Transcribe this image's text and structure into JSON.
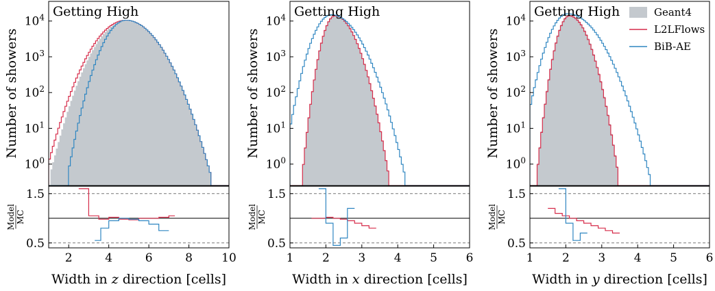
{
  "figure": {
    "colors": {
      "geant": "#c4c9ce",
      "l2l": "#d62c4a",
      "bib": "#2f86c1",
      "refline": "#777777"
    },
    "legend": [
      {
        "name": "Geant4",
        "style": "fill",
        "color": "#c4c9ce"
      },
      {
        "name": "L2LFlows",
        "style": "line",
        "color": "#d62c4a"
      },
      {
        "name": "BiB-AE",
        "style": "line",
        "color": "#2f86c1"
      }
    ]
  },
  "chart_data": [
    {
      "type": "histogram",
      "annotation": "Getting High",
      "xlabel": "Width in z direction [cells]",
      "xlabel_parts": {
        "pre": "Width in ",
        "var": "z",
        "post": " direction [cells]"
      },
      "ylabel": "Number of showers",
      "ratio_label": {
        "num": "Model",
        "den": "MC"
      },
      "x_range": [
        1,
        10
      ],
      "x_ticks": [
        2,
        4,
        6,
        8,
        10
      ],
      "y_scale": "log",
      "y_range_log10": [
        -0.6,
        4.55
      ],
      "y_ticks": [
        "10^0",
        "10^1",
        "10^2",
        "10^3",
        "10^4"
      ],
      "ratio_range": [
        0.4,
        1.65
      ],
      "ratio_ticks": [
        0.5,
        1.5
      ],
      "series": [
        {
          "name": "Geant4",
          "mu": 4.85,
          "sl": 0.85,
          "sr": 0.95,
          "peak": 10000
        },
        {
          "name": "L2LFlows",
          "mu": 4.85,
          "sl": 0.9,
          "sr": 0.95,
          "peak": 10500
        },
        {
          "name": "BiB-AE",
          "mu": 4.85,
          "sl": 0.65,
          "sr": 0.95,
          "peak": 10500
        }
      ],
      "ratio_series": [
        {
          "name": "L2LFlows",
          "x": [
            2.5,
            3.0,
            3.5,
            4.0,
            4.5,
            5.0,
            5.5,
            6.0,
            6.5,
            7.0,
            7.3
          ],
          "y": [
            1.6,
            1.05,
            0.98,
            1.02,
            0.98,
            0.97,
            1.0,
            1.0,
            1.02,
            1.05,
            1.6
          ]
        },
        {
          "name": "BiB-AE",
          "x": [
            3.3,
            3.6,
            4.0,
            4.5,
            5.0,
            5.5,
            6.0,
            6.5,
            7.0
          ],
          "y": [
            0.55,
            0.8,
            0.95,
            1.0,
            0.98,
            0.95,
            0.88,
            0.75,
            0.55
          ]
        }
      ]
    },
    {
      "type": "histogram",
      "annotation": "Getting High",
      "xlabel": "Width in x direction [cells]",
      "xlabel_parts": {
        "pre": "Width in ",
        "var": "x",
        "post": " direction [cells]"
      },
      "ylabel": "Number of showers",
      "ratio_label": {
        "num": "Model",
        "den": "MC"
      },
      "x_range": [
        1,
        6
      ],
      "x_ticks": [
        1,
        2,
        3,
        4,
        5,
        6
      ],
      "y_scale": "log",
      "y_range_log10": [
        -0.6,
        4.55
      ],
      "y_ticks": [
        "10^0",
        "10^1",
        "10^2",
        "10^3",
        "10^4"
      ],
      "ratio_range": [
        0.4,
        1.65
      ],
      "ratio_ticks": [
        0.5,
        1.5
      ],
      "series": [
        {
          "name": "Geant4",
          "mu": 2.25,
          "sl": 0.2,
          "sr": 0.33,
          "peak": 14500
        },
        {
          "name": "L2LFlows",
          "mu": 2.25,
          "sl": 0.2,
          "sr": 0.33,
          "peak": 14000
        },
        {
          "name": "BiB-AE",
          "mu": 2.15,
          "sl": 0.3,
          "sr": 0.45,
          "peak": 15000
        }
      ],
      "ratio_series": [
        {
          "name": "L2LFlows",
          "x": [
            1.6,
            1.8,
            2.0,
            2.2,
            2.4,
            2.6,
            2.8,
            3.0,
            3.2,
            3.4
          ],
          "y": [
            1.0,
            1.0,
            1.02,
            1.0,
            0.98,
            0.95,
            0.9,
            0.85,
            0.8,
            0.6
          ]
        },
        {
          "name": "BiB-AE",
          "x": [
            1.8,
            2.0,
            2.2,
            2.4,
            2.6,
            2.8
          ],
          "y": [
            1.6,
            0.9,
            0.45,
            0.6,
            1.2,
            1.6
          ]
        }
      ]
    },
    {
      "type": "histogram",
      "annotation": "Getting High",
      "xlabel": "Width in y direction [cells]",
      "xlabel_parts": {
        "pre": "Width in ",
        "var": "y",
        "post": " direction [cells]"
      },
      "ylabel": "Number of showers",
      "ratio_label": {
        "num": "Model",
        "den": "MC"
      },
      "x_range": [
        1,
        6
      ],
      "x_ticks": [
        1,
        2,
        3,
        4,
        5,
        6
      ],
      "y_scale": "log",
      "y_range_log10": [
        -0.6,
        4.55
      ],
      "y_ticks": [
        "10^0",
        "10^1",
        "10^2",
        "10^3",
        "10^4"
      ],
      "ratio_range": [
        0.4,
        1.65
      ],
      "ratio_ticks": [
        0.5,
        1.5
      ],
      "series": [
        {
          "name": "Geant4",
          "mu": 2.1,
          "sl": 0.2,
          "sr": 0.3,
          "peak": 15000
        },
        {
          "name": "L2LFlows",
          "mu": 2.1,
          "sl": 0.2,
          "sr": 0.3,
          "peak": 14000
        },
        {
          "name": "BiB-AE",
          "mu": 2.05,
          "sl": 0.3,
          "sr": 0.5,
          "peak": 16000
        }
      ],
      "ratio_series": [
        {
          "name": "L2LFlows",
          "x": [
            1.5,
            1.7,
            1.9,
            2.1,
            2.3,
            2.5,
            2.7,
            2.9,
            3.1,
            3.3,
            3.5
          ],
          "y": [
            1.2,
            1.1,
            1.05,
            1.0,
            0.95,
            0.9,
            0.85,
            0.8,
            0.75,
            0.7,
            0.6
          ]
        },
        {
          "name": "BiB-AE",
          "x": [
            1.8,
            2.0,
            2.2,
            2.4,
            2.6
          ],
          "y": [
            1.6,
            0.9,
            0.55,
            0.7,
            1.5
          ]
        }
      ]
    }
  ]
}
